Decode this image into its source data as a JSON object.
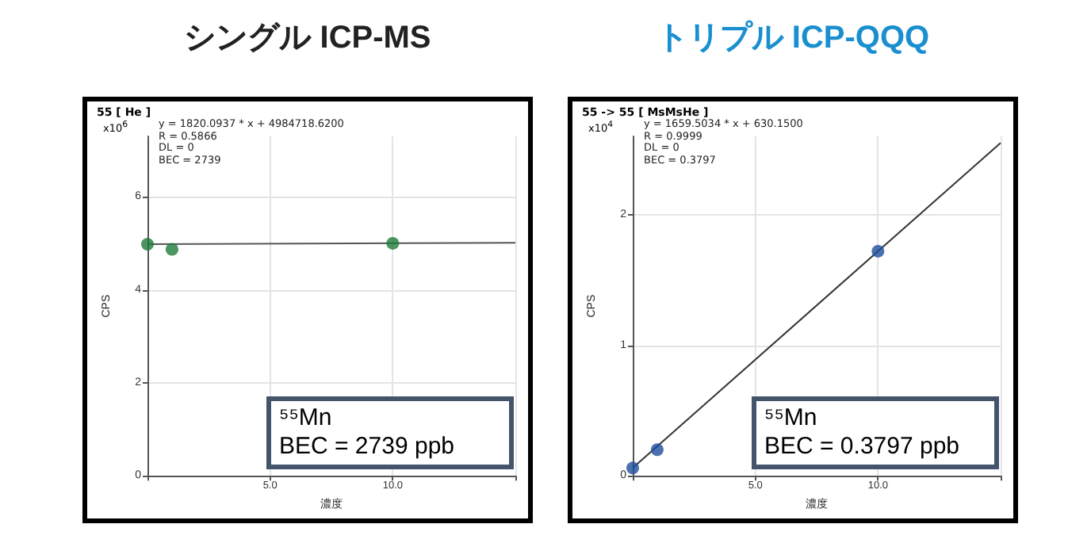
{
  "chart_data": [
    {
      "type": "scatter",
      "title": "シングル ICP-MS",
      "subtitle": "55  [ He ]",
      "xlabel": "濃度",
      "ylabel": "CPS",
      "series": [
        {
          "color": "#1e7b3a",
          "x": [
            0,
            1,
            10
          ],
          "values": [
            4.98,
            4.87,
            5.0
          ]
        },
        {
          "type": "line",
          "color": "#555555",
          "x": [
            0,
            15
          ],
          "values": [
            4.98,
            5.01
          ],
          "marker": "none"
        }
      ],
      "marker": "circle",
      "xlim": [
        0,
        15
      ],
      "xticks": [
        {
          "value": 0,
          "label": null
        },
        {
          "value": 5,
          "label": "5.0"
        },
        {
          "value": 10,
          "label": "10.0"
        },
        {
          "value": 15,
          "label": null
        }
      ],
      "ylim": [
        0,
        7.3
      ],
      "yticks": [
        0,
        2,
        4,
        6
      ],
      "grid": true,
      "annotations": [
        "x10$^{6}$",
        "y = 1820.0937 * x  + 4984718.6200",
        "R =  0.5866",
        "DL = 0",
        "BEC = 2739",
        "⁵⁵Mn",
        "BEC = 2739 ppb"
      ]
    },
    {
      "type": "scatter",
      "title": "トリプル ICP-QQQ",
      "subtitle": "55 -> 55   [ MsMsHe ]",
      "xlabel": "濃度",
      "ylabel": "CPS",
      "series": [
        {
          "color": "#1f4e9c",
          "x": [
            0,
            1,
            10
          ],
          "values": [
            0.06,
            0.2,
            1.72
          ]
        },
        {
          "type": "line",
          "color": "#333333",
          "x": [
            0,
            15
          ],
          "values": [
            0.06,
            2.55
          ],
          "marker": "none"
        }
      ],
      "marker": "circle",
      "xlim": [
        0,
        15
      ],
      "xticks": [
        {
          "value": 0,
          "label": null
        },
        {
          "value": 5,
          "label": "5.0"
        },
        {
          "value": 10,
          "label": "10.0"
        },
        {
          "value": 15,
          "label": null
        }
      ],
      "ylim": [
        0,
        2.6
      ],
      "yticks": [
        0,
        1,
        2
      ],
      "grid": true,
      "annotations": [
        "x10$^{4}$",
        "y = 1659.5034 * x  + 630.1500",
        "R =  0.9999",
        "DL = 0",
        "BEC = 0.3797",
        "⁵⁵Mn",
        "BEC = 0.3797 ppb"
      ]
    }
  ]
}
